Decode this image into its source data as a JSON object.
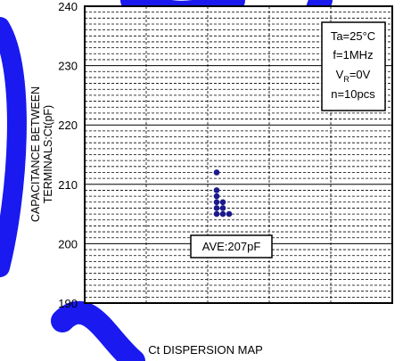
{
  "chart_data": {
    "type": "scatter",
    "title": "",
    "xlabel": "",
    "ylabel_line1": "CAPACITANCE BETWEEN",
    "ylabel_line2": "TERMINALS:Ct(pF)",
    "ylim": [
      190,
      240
    ],
    "y_ticks": [
      "240",
      "230",
      "220",
      "210",
      "200",
      "190"
    ],
    "x_ticks": [],
    "grid": true,
    "series": [
      {
        "color": "#1a1a8c",
        "points": [
          {
            "x": 0,
            "y": 212
          },
          {
            "x": 0,
            "y": 209
          },
          {
            "x": 0,
            "y": 208
          },
          {
            "x": 0,
            "y": 207
          },
          {
            "x": 1,
            "y": 207
          },
          {
            "x": 0,
            "y": 206
          },
          {
            "x": 1,
            "y": 206
          },
          {
            "x": 0,
            "y": 205
          },
          {
            "x": 1,
            "y": 205
          },
          {
            "x": 2,
            "y": 205
          }
        ]
      }
    ],
    "conditions": {
      "ta": "Ta=25°C",
      "f": "f=1MHz",
      "vr_prefix": "V",
      "vr_sub": "R",
      "vr_suffix": "=0V",
      "n": "n=10pcs"
    },
    "average_label": "AVE:207pF"
  },
  "caption": "Ct DISPERSION MAP",
  "colors": {
    "marker": "#1a1a8c",
    "watermark": "#0000ee"
  }
}
